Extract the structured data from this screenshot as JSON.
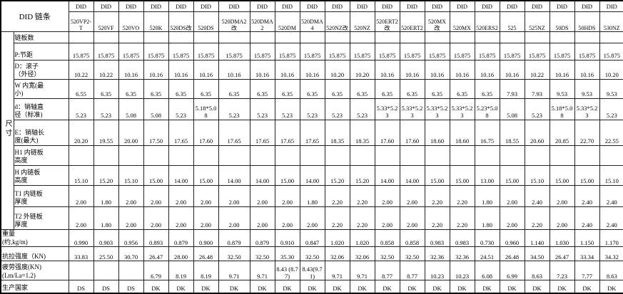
{
  "title": {
    "corner": "DID 链条",
    "brand": "DID"
  },
  "size_group_label": "尺寸",
  "columns": [
    "520VP2-T",
    "520VF",
    "520VO",
    "520K",
    "520DS改",
    "520DS",
    "520DMA2改",
    "520DMA2",
    "520DM",
    "520DMA4",
    "520NZ改",
    "520NZ",
    "520ERT2改",
    "520ERT2",
    "520MX改",
    "520MX",
    "520ERS2",
    "525",
    "525NZ",
    "50DS",
    "50HDS",
    "530NZ"
  ],
  "rows": [
    {
      "label": "链板数",
      "group": "size",
      "values": [
        "",
        "",
        "",
        "",
        "",
        "",
        "",
        "",
        "",
        "",
        "",
        "",
        "",
        "",
        "",
        "",
        "",
        "",
        "",
        "",
        "",
        ""
      ]
    },
    {
      "label": "P:节距",
      "group": "size",
      "values": [
        "15.875",
        "15.875",
        "15.875",
        "15.875",
        "15.875",
        "15.875",
        "15.875",
        "15.875",
        "15.875",
        "15.875",
        "15.875",
        "15.875",
        "15.875",
        "15.875",
        "15.875",
        "15.875",
        "15.875",
        "15.875",
        "15.875",
        "15.875",
        "15.875",
        "15.875"
      ]
    },
    {
      "label": "D：滚子\n（外径）",
      "group": "size",
      "values": [
        "10.22",
        "10.22",
        "10.16",
        "10.16",
        "10.16",
        "10.16",
        "10.16",
        "10.16",
        "10.16",
        "10.16",
        "10.20",
        "10.20",
        "10.16",
        "10.16",
        "10.16",
        "10.16",
        "10.16",
        "10.16",
        "10.22",
        "10.16",
        "10.16",
        "10.20"
      ]
    },
    {
      "label": "W 内宽(最\n小)",
      "group": "size",
      "values": [
        "6.55",
        "6.35",
        "6.35",
        "6.35",
        "6.35",
        "6.35",
        "6.35",
        "6.35",
        "6.35",
        "6.35",
        "6.35",
        "6.35",
        "6.35",
        "6.35",
        "6.35",
        "6.35",
        "6.35",
        "7.93",
        "7.93",
        "9.53",
        "9.53",
        "9.53"
      ]
    },
    {
      "label": "d：销轴直\n径（标准)",
      "group": "size",
      "values": [
        "5.23",
        "5.23",
        "5.08",
        "5.08",
        "5.23",
        "5.18*5.08",
        "5.23",
        "5.23",
        "5.23",
        "5.23",
        "5.23",
        "5.23",
        "5.33*5.23",
        "5.33*5.23",
        "5.33*5.23",
        "5.33*5.23",
        "5.23*5.08",
        "5.08",
        "5.23",
        "5.18*5.08",
        "5.33*5.23",
        "5.23"
      ]
    },
    {
      "label": "E：销轴长\n度(最大)",
      "group": "size",
      "values": [
        "20.20",
        "19.55",
        "20.00",
        "17.50",
        "17.65",
        "17.60",
        "17.65",
        "17.65",
        "17.65",
        "17.65",
        "18.35",
        "18.35",
        "17.60",
        "17.60",
        "18.60",
        "18.60",
        "16.75",
        "18.55",
        "20.60",
        "20.85",
        "22.70",
        "22.55"
      ]
    },
    {
      "label": "H1 内链板\n高度",
      "group": "size",
      "values": [
        "",
        "",
        "",
        "",
        "",
        "",
        "",
        "",
        "",
        "",
        "",
        "",
        "",
        "",
        "",
        "",
        "",
        "",
        "",
        "",
        "",
        ""
      ]
    },
    {
      "label": "H 内链板\n高度",
      "group": "size",
      "values": [
        "15.10",
        "15.20",
        "15.10",
        "15.00",
        "14.00",
        "15.00",
        "14.00",
        "14.00",
        "15.00",
        "14.00",
        "15.20",
        "15.20",
        "14.00",
        "14.00",
        "15.00",
        "15.00",
        "13.00",
        "15.00",
        "15.10",
        "15.00",
        "15.00",
        "15.10"
      ]
    },
    {
      "label": "T1 内链板\n厚度",
      "group": "size",
      "values": [
        "2.00",
        "1.80",
        "2.00",
        "2.00",
        "2.00",
        "2.00",
        "2.00",
        "2.00",
        "2.00",
        "1.80",
        "2.20",
        "2.20",
        "2.00",
        "2.00",
        "2.20",
        "2.20",
        "1.80",
        "2.00",
        "2.40",
        "2.00",
        "2.40",
        "2.40"
      ]
    },
    {
      "label": "T2 外链板\n厚度",
      "group": "size",
      "values": [
        "2.00",
        "1.80",
        "2.00",
        "2.00",
        "2.00",
        "2.00",
        "2.00",
        "2.00",
        "2.00",
        "2.00",
        "2.20",
        "2.20",
        "2.00",
        "2.00",
        "2.20",
        "2.20",
        "1.80",
        "2.00",
        "2.20",
        "2.00",
        "2.40",
        "2.40"
      ]
    },
    {
      "label": "重量\n(约,kg/m)",
      "group": "full",
      "values": [
        "0.990",
        "0.903",
        "0.956",
        "0.893",
        "0.879",
        "0.900",
        "0.879",
        "0.879",
        "0.910",
        "0.847",
        "1.020",
        "1.020",
        "0.858",
        "0.858",
        "0.983",
        "0.983",
        "0.730",
        "0.960",
        "1.140",
        "1.030",
        "1.150",
        "1.170"
      ]
    },
    {
      "label": "抗拉强度（KN)",
      "group": "full",
      "values": [
        "33.83",
        "25.50",
        "30.70",
        "26.47",
        "28.00",
        "26.48",
        "32.50",
        "32.50",
        "35.30",
        "32.50",
        "32.06",
        "32.06",
        "32.50",
        "32.50",
        "32.36",
        "32.36",
        "24.51",
        "26.48",
        "34.50",
        "26.47",
        "33.34",
        "34.32"
      ]
    },
    {
      "label": "疲劳强度(KN)\n(Lm/La=1.2)",
      "group": "full",
      "values": [
        "",
        "",
        "",
        "6.79",
        "8.19",
        "8.19",
        "9.71",
        "9.71",
        "8.43 (8.77)",
        "8.43(9.71)",
        "9.71",
        "9.71",
        "8.77",
        "8.77",
        "10.23",
        "10.23",
        "6.08",
        "6.99",
        "8.63",
        "7.23",
        "7.77",
        "8.63"
      ]
    },
    {
      "label": "生产国家",
      "group": "full",
      "values": [
        "DS",
        "DS",
        "DS",
        "DK",
        "DK",
        "DK",
        "DK",
        "DK",
        "DK",
        "DK",
        "DK",
        "DK",
        "DK",
        "DK",
        "DK",
        "DK",
        "DK",
        "DK",
        "DK",
        "DK",
        "DK",
        "DK"
      ]
    }
  ]
}
